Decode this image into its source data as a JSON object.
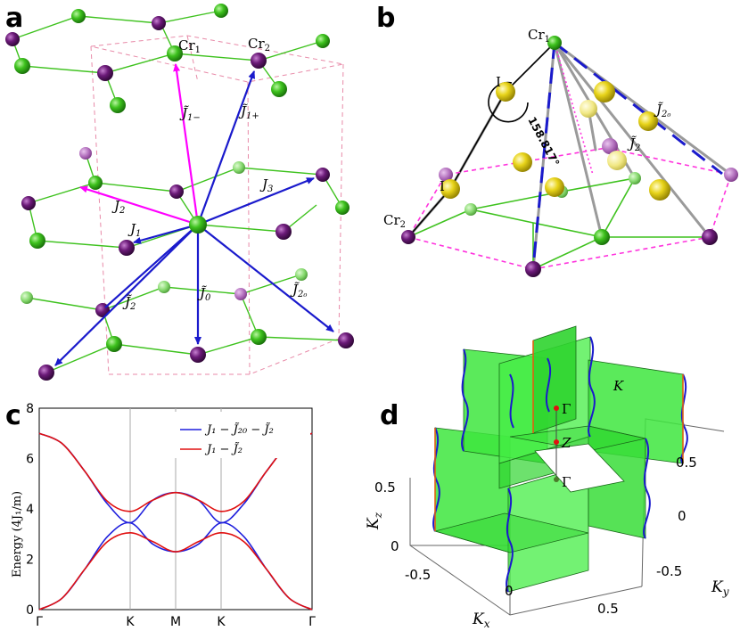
{
  "panels": {
    "a": {
      "label": "a",
      "sites": {
        "cr1": "Cr",
        "cr1_sub": "1",
        "cr2": "Cr",
        "cr2_sub": "2"
      },
      "bonds": {
        "j1m": "J̃",
        "j1m_sub": "1−",
        "j1p": "J̃",
        "j1p_sub": "1+",
        "j1": "J",
        "j1_sub": "1",
        "j2": "J",
        "j2_sub": "2",
        "j3": "J",
        "j3_sub": "3",
        "jt0": "J̃",
        "jt0_sub": "0",
        "jt2": "J̃",
        "jt2_sub": "2",
        "jt20": "J̃",
        "jt20_sub": "2₀"
      },
      "colors": {
        "green_atom": "#3ec21e",
        "purple_atom": "#6b1a78",
        "magenta_arrow": "#ff00ff",
        "blue_arrow": "#1a1acc"
      }
    },
    "b": {
      "label": "b",
      "cr1": "Cr",
      "cr1_sub": "1",
      "cr2": "Cr",
      "cr2_sub": "2",
      "i_top": "I",
      "i_bot": "I",
      "angle": "158.817°",
      "jt20": "J̃",
      "jt20_sub": "2₀",
      "jt2": "J̃",
      "jt2_sub": "2"
    },
    "c": {
      "label": "c",
      "ylabel": "Energy (4J₁/m)",
      "legend": [
        {
          "name": "J₁ − J̃₂₀ − J̃₂",
          "color": "#1f1fdd"
        },
        {
          "name": "J₁ − J̃₂",
          "color": "#e01010"
        }
      ]
    },
    "d": {
      "label": "d",
      "kz_label": "K",
      "kz_sub": "z",
      "kx_label": "K",
      "kx_sub": "x",
      "ky_label": "K",
      "ky_sub": "y",
      "point_gamma_top": "Γ",
      "point_z": "Z",
      "point_gamma_bot": "Γ",
      "point_k": "K",
      "kz_ticks": [
        "0.5",
        "0"
      ],
      "kx_ticks": [
        "-0.5",
        "0",
        "0.5"
      ],
      "ky_ticks": [
        "0.5",
        "0",
        "-0.5"
      ]
    }
  },
  "chart_data": {
    "type": "line",
    "title": "",
    "xlabel": "",
    "ylabel": "Energy (4J₁/m)",
    "x_ticks": [
      "Γ",
      "K",
      "M",
      "K",
      "Γ"
    ],
    "x_tick_positions": [
      0,
      1,
      1.5,
      2,
      3
    ],
    "y_ticks": [
      0,
      2,
      4,
      6,
      8
    ],
    "ylim": [
      0,
      8
    ],
    "xlim": [
      0,
      3
    ],
    "legend_position": "top-right",
    "series": [
      {
        "name": "J₁ − J̃₂₀ − J̃₂",
        "color": "#1f1fdd",
        "bands": [
          {
            "x": [
              0,
              0.25,
              0.5,
              0.75,
              1,
              1.25,
              1.5,
              1.75,
              2,
              2.25,
              2.5,
              2.75,
              3
            ],
            "y": [
              0,
              0.45,
              1.6,
              2.9,
              3.45,
              2.6,
              2.3,
              2.6,
              3.45,
              2.9,
              1.6,
              0.45,
              0
            ]
          },
          {
            "x": [
              0,
              0.25,
              0.5,
              0.75,
              1,
              1.25,
              1.5,
              1.75,
              2,
              2.25,
              2.5,
              2.75,
              3
            ],
            "y": [
              7.0,
              6.6,
              5.5,
              4.2,
              3.45,
              4.35,
              4.65,
              4.35,
              3.45,
              4.2,
              5.5,
              6.6,
              7.0
            ]
          }
        ]
      },
      {
        "name": "J₁ − J̃₂",
        "color": "#e01010",
        "bands": [
          {
            "x": [
              0,
              0.25,
              0.5,
              0.75,
              1,
              1.25,
              1.5,
              1.75,
              2,
              2.25,
              2.5,
              2.75,
              3
            ],
            "y": [
              0,
              0.45,
              1.6,
              2.7,
              3.05,
              2.7,
              2.3,
              2.7,
              3.05,
              2.7,
              1.6,
              0.45,
              0
            ]
          },
          {
            "x": [
              0,
              0.25,
              0.5,
              0.75,
              1,
              1.25,
              1.5,
              1.75,
              2,
              2.25,
              2.5,
              2.75,
              3
            ],
            "y": [
              7.0,
              6.6,
              5.5,
              4.3,
              3.9,
              4.35,
              4.65,
              4.35,
              3.9,
              4.3,
              5.5,
              6.6,
              7.0
            ]
          }
        ]
      }
    ]
  }
}
